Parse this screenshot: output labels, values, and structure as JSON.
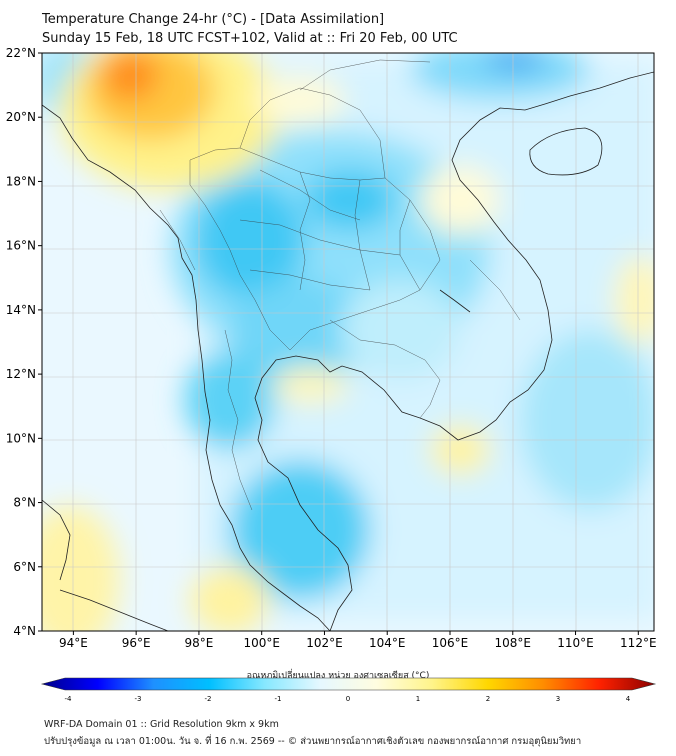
{
  "title_line1": "Temperature Change 24-hr (°C) - [Data Assimilation]",
  "title_line2": "Sunday 15 Feb, 18 UTC FCST+102, Valid at :: Fri 20 Feb, 00 UTC",
  "map": {
    "lat_range": [
      4,
      22
    ],
    "lon_range": [
      93,
      112.5
    ],
    "lat_ticks": [
      {
        "value": 22,
        "label": "22°N"
      },
      {
        "value": 20,
        "label": "20°N"
      },
      {
        "value": 18,
        "label": "18°N"
      },
      {
        "value": 16,
        "label": "16°N"
      },
      {
        "value": 14,
        "label": "14°N"
      },
      {
        "value": 12,
        "label": "12°N"
      },
      {
        "value": 10,
        "label": "10°N"
      },
      {
        "value": 8,
        "label": "8°N"
      },
      {
        "value": 6,
        "label": "6°N"
      },
      {
        "value": 4,
        "label": "4°N"
      }
    ],
    "lon_ticks": [
      {
        "value": 94,
        "label": "94°E"
      },
      {
        "value": 96,
        "label": "96°E"
      },
      {
        "value": 98,
        "label": "98°E"
      },
      {
        "value": 100,
        "label": "100°E"
      },
      {
        "value": 102,
        "label": "102°E"
      },
      {
        "value": 104,
        "label": "104°E"
      },
      {
        "value": 106,
        "label": "106°E"
      },
      {
        "value": 108,
        "label": "108°E"
      },
      {
        "value": 110,
        "label": "110°E"
      },
      {
        "value": 112,
        "label": "112°E"
      }
    ]
  },
  "colorbar": {
    "label": "อุณหภูมิเปลี่ยนแปลง หน่วย องศาเซลเซียส (°C)",
    "min": -4,
    "max": 4,
    "ticks": [
      "-4",
      "-3",
      "-2",
      "-1",
      "0",
      "1",
      "2",
      "3",
      "4"
    ],
    "colors": [
      "#00008b",
      "#0000ff",
      "#1e90ff",
      "#00bfff",
      "#87e8ff",
      "#e6f8ff",
      "#fffde0",
      "#fff48a",
      "#ffd700",
      "#ff8c00",
      "#ff2200",
      "#8b0000"
    ]
  },
  "footer_line1": "WRF-DA Domain 01 :: Grid Resolution 9km x 9km",
  "footer_line2": "ปรับปรุงข้อมูล ณ เวลา 01:00น. วัน จ. ที่ 16 ก.พ. 2569 -- © ส่วนพยากรณ์อากาศเชิงตัวเลข กองพยากรณ์อากาศ กรมอุตุนิยมวิทยา"
}
